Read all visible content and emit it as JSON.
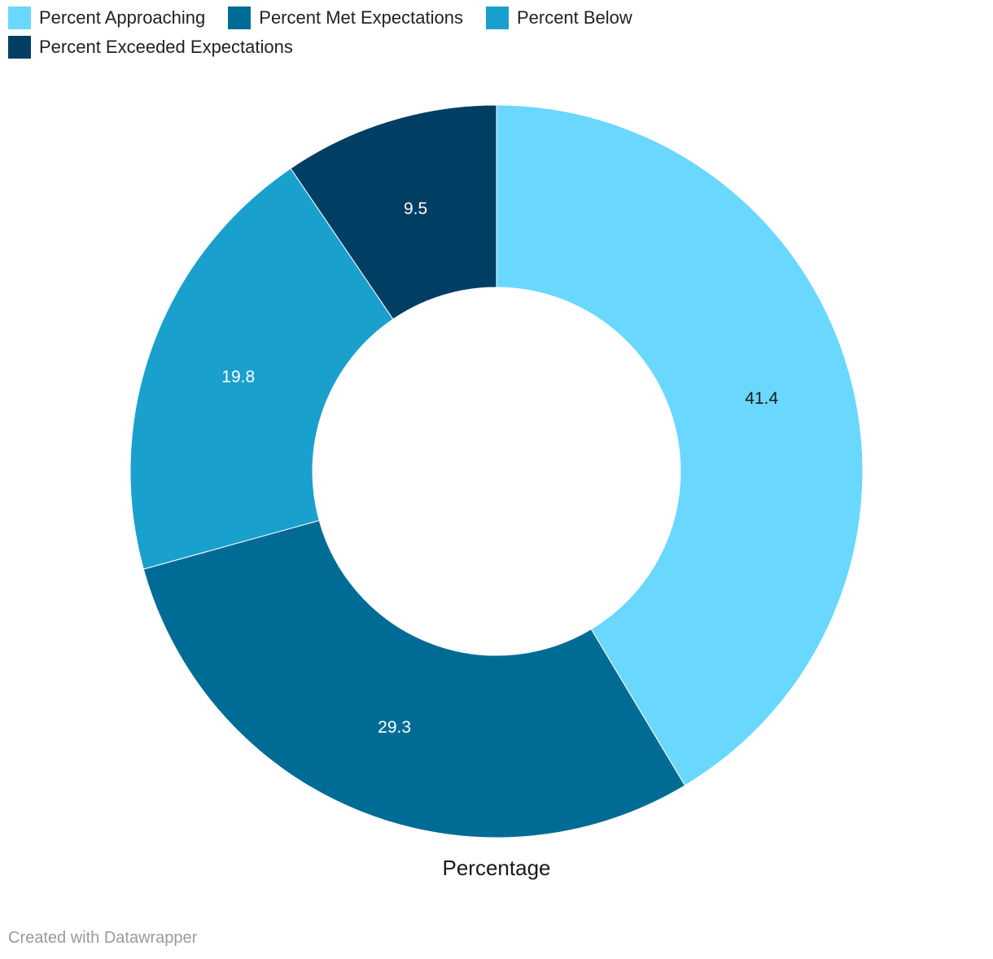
{
  "chart_data": {
    "type": "pie",
    "variant": "donut",
    "series_label": "Percentage",
    "slices": [
      {
        "label": "Percent Approaching",
        "value": 41.4,
        "color": "#6ad7ff",
        "label_color": "#1a1a1a"
      },
      {
        "label": "Percent Met Expectations",
        "value": 29.3,
        "color": "#006c95",
        "label_color": "#ffffff"
      },
      {
        "label": "Percent Below",
        "value": 19.8,
        "color": "#19a0cd",
        "label_color": "#ffffff"
      },
      {
        "label": "Percent Exceeded Expectations",
        "value": 9.5,
        "color": "#003e63",
        "label_color": "#ffffff"
      }
    ],
    "legend_placement": "top-left"
  },
  "footer": {
    "credit": "Created with Datawrapper"
  }
}
